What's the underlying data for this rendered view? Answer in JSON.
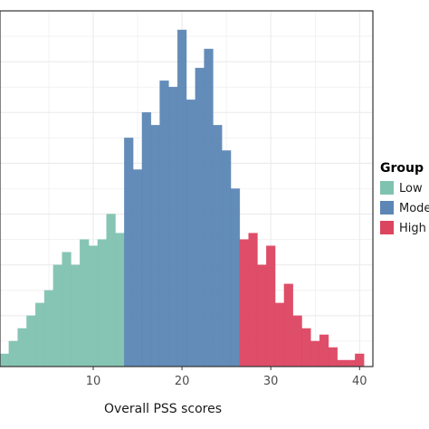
{
  "chart_data": {
    "type": "bar",
    "xlabel": "Overall PSS scores",
    "ylabel": "",
    "x_ticks": [
      10,
      20,
      30,
      40
    ],
    "xlim": [
      -0.5,
      41.5
    ],
    "ylim": [
      0,
      56
    ],
    "grid": true,
    "legend_position": "right",
    "legend_title": "Group",
    "groups": [
      {
        "name": "Low",
        "color": "#7fc2b0"
      },
      {
        "name": "Moderate",
        "color": "#5b86b5"
      },
      {
        "name": "High",
        "color": "#dc4560"
      }
    ],
    "bins": [
      {
        "x": 0,
        "count": 2,
        "group": "Low"
      },
      {
        "x": 1,
        "count": 4,
        "group": "Low"
      },
      {
        "x": 2,
        "count": 6,
        "group": "Low"
      },
      {
        "x": 3,
        "count": 8,
        "group": "Low"
      },
      {
        "x": 4,
        "count": 10,
        "group": "Low"
      },
      {
        "x": 5,
        "count": 12,
        "group": "Low"
      },
      {
        "x": 6,
        "count": 16,
        "group": "Low"
      },
      {
        "x": 7,
        "count": 18,
        "group": "Low"
      },
      {
        "x": 8,
        "count": 16,
        "group": "Low"
      },
      {
        "x": 9,
        "count": 20,
        "group": "Low"
      },
      {
        "x": 10,
        "count": 19,
        "group": "Low"
      },
      {
        "x": 11,
        "count": 20,
        "group": "Low"
      },
      {
        "x": 12,
        "count": 24,
        "group": "Low"
      },
      {
        "x": 13,
        "count": 21,
        "group": "Low"
      },
      {
        "x": 14,
        "count": 36,
        "group": "Moderate"
      },
      {
        "x": 15,
        "count": 31,
        "group": "Moderate"
      },
      {
        "x": 16,
        "count": 40,
        "group": "Moderate"
      },
      {
        "x": 17,
        "count": 38,
        "group": "Moderate"
      },
      {
        "x": 18,
        "count": 45,
        "group": "Moderate"
      },
      {
        "x": 19,
        "count": 44,
        "group": "Moderate"
      },
      {
        "x": 20,
        "count": 53,
        "group": "Moderate"
      },
      {
        "x": 21,
        "count": 42,
        "group": "Moderate"
      },
      {
        "x": 22,
        "count": 47,
        "group": "Moderate"
      },
      {
        "x": 23,
        "count": 50,
        "group": "Moderate"
      },
      {
        "x": 24,
        "count": 38,
        "group": "Moderate"
      },
      {
        "x": 25,
        "count": 34,
        "group": "Moderate"
      },
      {
        "x": 26,
        "count": 28,
        "group": "Moderate"
      },
      {
        "x": 27,
        "count": 20,
        "group": "High"
      },
      {
        "x": 28,
        "count": 21,
        "group": "High"
      },
      {
        "x": 29,
        "count": 16,
        "group": "High"
      },
      {
        "x": 30,
        "count": 19,
        "group": "High"
      },
      {
        "x": 31,
        "count": 10,
        "group": "High"
      },
      {
        "x": 32,
        "count": 13,
        "group": "High"
      },
      {
        "x": 33,
        "count": 8,
        "group": "High"
      },
      {
        "x": 34,
        "count": 6,
        "group": "High"
      },
      {
        "x": 35,
        "count": 4,
        "group": "High"
      },
      {
        "x": 36,
        "count": 5,
        "group": "High"
      },
      {
        "x": 37,
        "count": 3,
        "group": "High"
      },
      {
        "x": 38,
        "count": 1,
        "group": "High"
      },
      {
        "x": 39,
        "count": 1,
        "group": "High"
      },
      {
        "x": 40,
        "count": 2,
        "group": "High"
      }
    ]
  }
}
